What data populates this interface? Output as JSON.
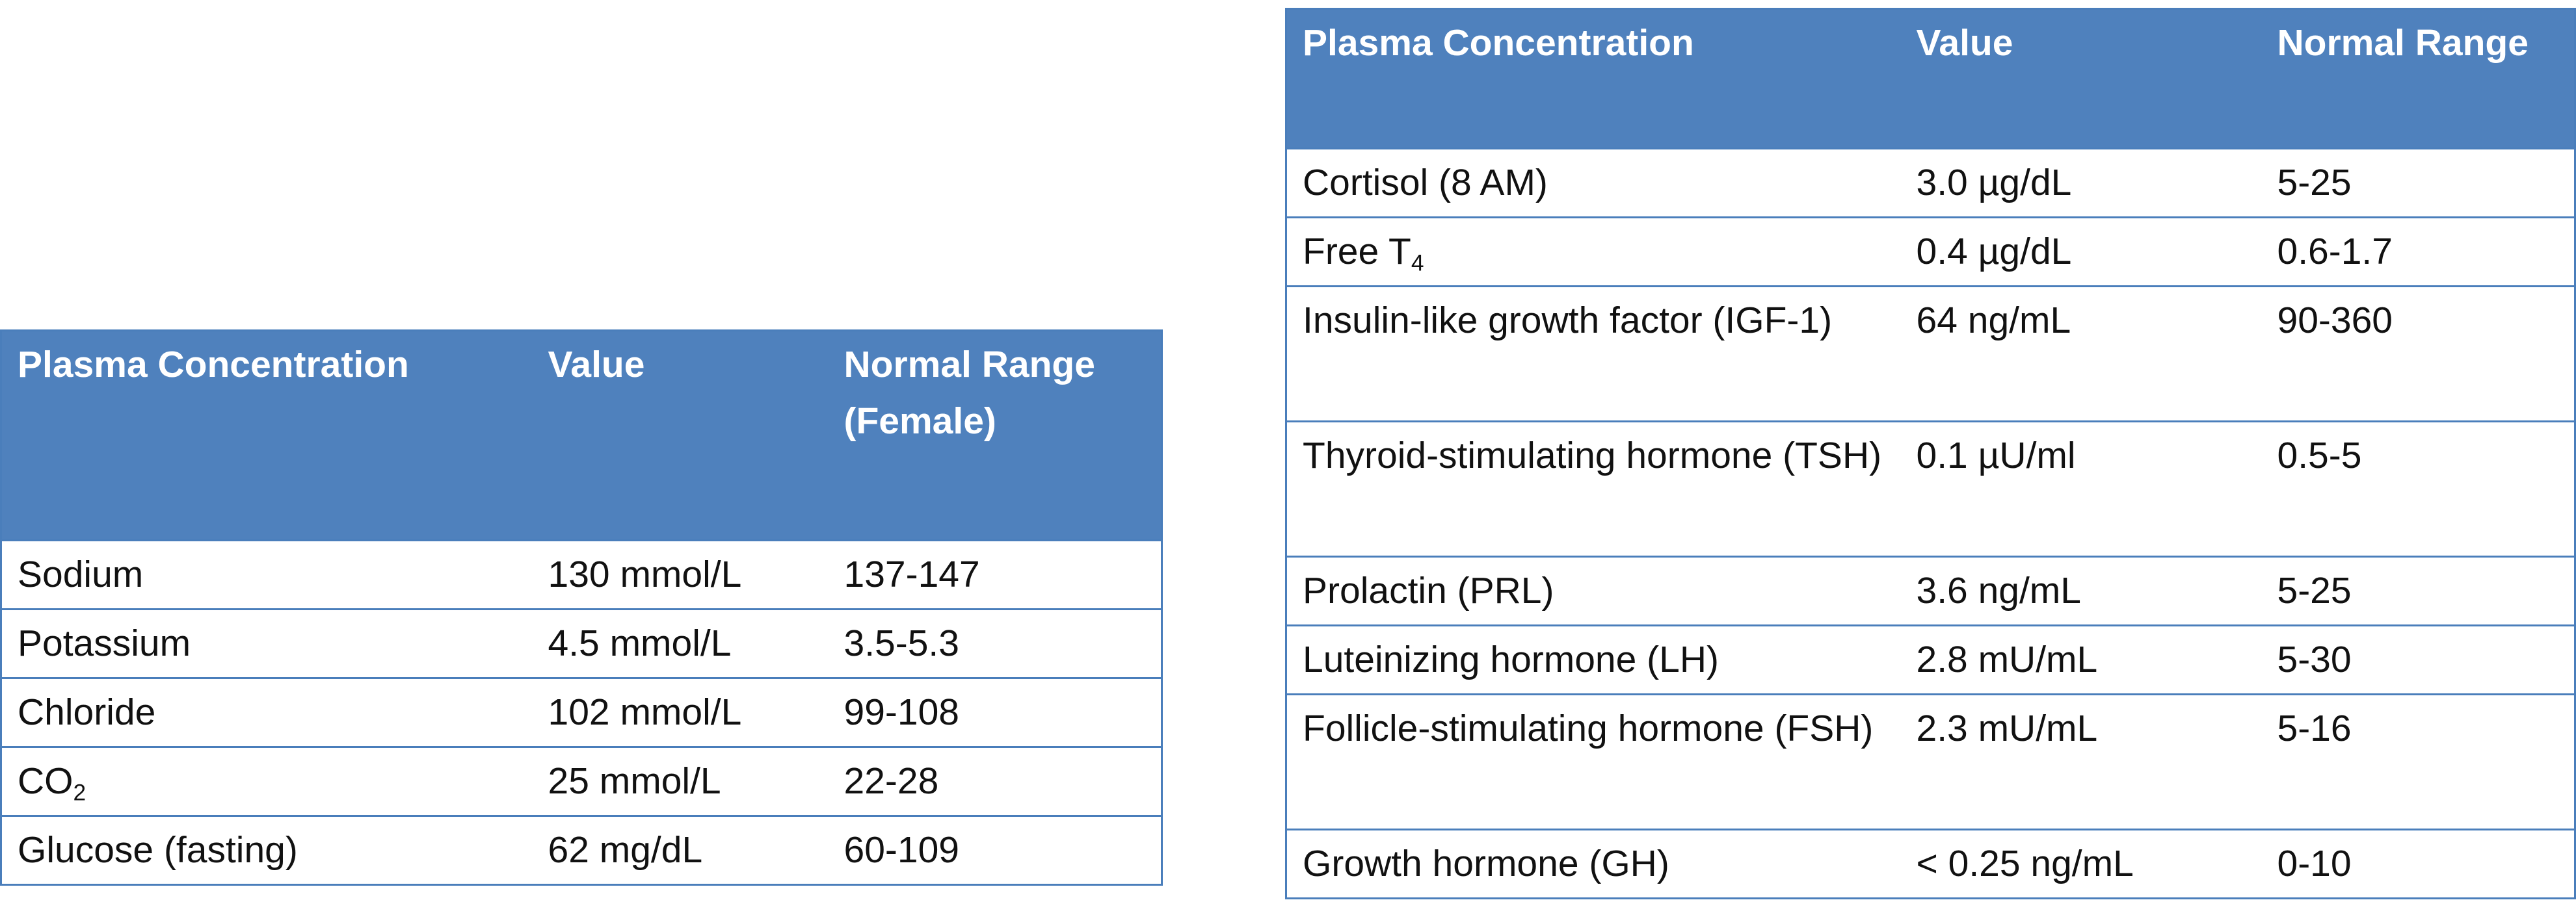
{
  "table_left": {
    "headers": [
      "Plasma Concentration",
      "Value",
      "Normal Range (Female)"
    ],
    "rows": [
      {
        "analyte": "Sodium",
        "value": "130 mmol/L",
        "range": "137-147"
      },
      {
        "analyte": "Potassium",
        "value": "4.5 mmol/L",
        "range": "3.5-5.3"
      },
      {
        "analyte": "Chloride",
        "value": "102 mmol/L",
        "range": "99-108"
      },
      {
        "analyte": "CO",
        "analyte_sub": "2",
        "value": "25 mmol/L",
        "range": "22-28"
      },
      {
        "analyte": "Glucose (fasting)",
        "value": "62 mg/dL",
        "range": "60-109"
      }
    ]
  },
  "table_right": {
    "headers": [
      "Plasma Concentration",
      "Value",
      "Normal Range"
    ],
    "rows": [
      {
        "analyte": "Cortisol (8 AM)",
        "value": "3.0 µg/dL",
        "range": "5-25"
      },
      {
        "analyte": "Free T",
        "analyte_sub": "4",
        "value": "0.4 µg/dL",
        "range": "0.6-1.7"
      },
      {
        "analyte": "Insulin-like growth factor (IGF-1)",
        "value": "64 ng/mL",
        "range": "90-360"
      },
      {
        "analyte": "Thyroid-stimulating hormone (TSH)",
        "value": "0.1 µU/ml",
        "range": "0.5-5"
      },
      {
        "analyte": "Prolactin (PRL)",
        "value": "3.6 ng/mL",
        "range": "5-25"
      },
      {
        "analyte": "Luteinizing hormone (LH)",
        "value": "2.8 mU/mL",
        "range": "5-30"
      },
      {
        "analyte": "Follicle-stimulating hormone (FSH)",
        "value": "2.3 mU/mL",
        "range": "5-16"
      },
      {
        "analyte": "Growth hormone (GH)",
        "value": "< 0.25 ng/mL",
        "range": "0-10"
      }
    ]
  },
  "colors": {
    "header_bg": "#4f81bd",
    "border": "#4a7ebb",
    "header_text": "#ffffff"
  }
}
